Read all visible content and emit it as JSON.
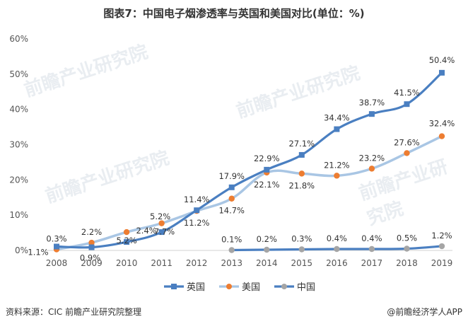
{
  "title": "图表7：中国电子烟渗透率与英国和美国对比(单位：%)",
  "footer": {
    "source": "资料来源：CIC 前瞻产业研究院整理",
    "brand": "@前瞻经济学人APP"
  },
  "watermark": "前瞻产业研究院",
  "chart_data": {
    "type": "line",
    "categories": [
      "2008",
      "2009",
      "2010",
      "2011",
      "2012",
      "2013",
      "2014",
      "2015",
      "2016",
      "2017",
      "2018",
      "2019"
    ],
    "y_ticks": [
      "0%",
      "10%",
      "20%",
      "30%",
      "40%",
      "50%",
      "60%"
    ],
    "ylim": [
      0,
      60
    ],
    "grid": false,
    "legend_position": "bottom",
    "series": [
      {
        "name": "英国",
        "color": "#4a7fc1",
        "marker": "square",
        "values": [
          1.1,
          0.9,
          2.4,
          5.2,
          11.4,
          17.9,
          22.9,
          27.1,
          34.4,
          38.7,
          41.5,
          50.4
        ],
        "labels": [
          "1.1%",
          "0.9%",
          "2.4%",
          "5.2%",
          "11.4%",
          "17.9%",
          "22.9%",
          "27.1%",
          "34.4%",
          "38.7%",
          "41.5%",
          "50.4%"
        ]
      },
      {
        "name": "美国",
        "color": "#a9c6e4",
        "marker_color": "#ed7d31",
        "marker": "circle",
        "values": [
          0.3,
          2.2,
          5.2,
          7.7,
          11.2,
          14.7,
          22.1,
          21.8,
          21.2,
          23.2,
          27.6,
          32.4
        ],
        "labels": [
          "0.3%",
          "2.2%",
          "5.2%",
          "7.7%",
          "11.2%",
          "14.7%",
          "22.1%",
          "21.8%",
          "21.2%",
          "23.2%",
          "27.6%",
          "32.4%"
        ]
      },
      {
        "name": "中国",
        "color": "#4a7fc1",
        "marker_color": "#a5a5a5",
        "marker": "circle",
        "start_index": 5,
        "values": [
          null,
          null,
          null,
          null,
          null,
          0.1,
          0.2,
          0.3,
          0.4,
          0.4,
          0.5,
          1.2
        ],
        "labels": [
          null,
          null,
          null,
          null,
          null,
          "0.1%",
          "0.2%",
          "0.3%",
          "0.4%",
          "0.4%",
          "0.5%",
          "1.2%"
        ]
      }
    ]
  }
}
